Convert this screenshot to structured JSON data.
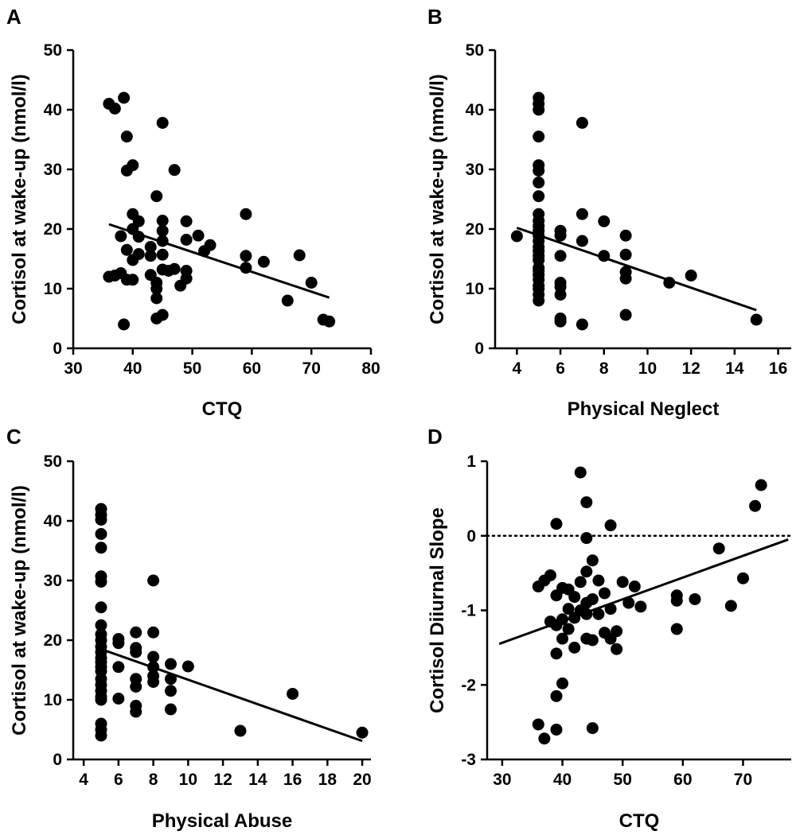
{
  "chart_data": [
    {
      "panel": "A",
      "type": "scatter",
      "xlabel": "CTQ",
      "ylabel": "Cortisol at wake-up (nmol/l)",
      "xlim": [
        30,
        80
      ],
      "ylim": [
        0,
        50
      ],
      "xticks": [
        "30",
        "40",
        "50",
        "60",
        "70",
        "80"
      ],
      "yticks": [
        "0",
        "10",
        "20",
        "30",
        "40",
        "50"
      ],
      "points": [
        [
          36,
          41
        ],
        [
          37,
          40.2
        ],
        [
          38.5,
          42
        ],
        [
          39,
          35.5
        ],
        [
          39,
          29.8
        ],
        [
          40,
          30.7
        ],
        [
          45,
          37.8
        ],
        [
          47,
          29.9
        ],
        [
          44,
          25.5
        ],
        [
          40,
          22.5
        ],
        [
          41,
          21.3
        ],
        [
          45,
          21.4
        ],
        [
          49,
          21.3
        ],
        [
          59,
          22.5
        ],
        [
          40,
          20
        ],
        [
          45,
          19.7
        ],
        [
          51,
          18.9
        ],
        [
          41,
          18.7
        ],
        [
          38,
          18.8
        ],
        [
          45,
          18
        ],
        [
          49,
          18.2
        ],
        [
          53,
          17.3
        ],
        [
          39,
          16.5
        ],
        [
          43,
          17
        ],
        [
          52,
          16.3
        ],
        [
          41,
          15.8
        ],
        [
          43,
          15.5
        ],
        [
          45,
          15.7
        ],
        [
          40,
          14.8
        ],
        [
          59,
          15.5
        ],
        [
          62,
          14.5
        ],
        [
          68,
          15.6
        ],
        [
          59,
          13.5
        ],
        [
          49,
          13
        ],
        [
          46,
          13
        ],
        [
          47,
          13.3
        ],
        [
          45,
          13.2
        ],
        [
          36,
          12
        ],
        [
          37,
          12.2
        ],
        [
          38,
          12.6
        ],
        [
          40,
          11.5
        ],
        [
          39,
          11.5
        ],
        [
          43,
          12.3
        ],
        [
          44,
          11
        ],
        [
          49,
          11.7
        ],
        [
          48,
          10.5
        ],
        [
          44,
          10
        ],
        [
          44,
          8.4
        ],
        [
          70,
          11
        ],
        [
          66,
          8
        ],
        [
          38.5,
          4
        ],
        [
          44,
          5
        ],
        [
          45,
          5.6
        ],
        [
          72,
          4.8
        ],
        [
          73,
          4.5
        ]
      ],
      "regression": {
        "x": [
          36,
          73
        ],
        "y": [
          20.8,
          8.5
        ]
      }
    },
    {
      "panel": "B",
      "type": "scatter",
      "xlabel": "Physical Neglect",
      "ylabel": "Cortisol at wake-up (nmol/l)",
      "xlim": [
        3,
        16.6
      ],
      "ylim": [
        0,
        50
      ],
      "xticks": [
        "4",
        "6",
        "8",
        "10",
        "12",
        "14",
        "16"
      ],
      "yticks": [
        "0",
        "10",
        "20",
        "30",
        "40",
        "50"
      ],
      "points": [
        [
          5,
          42
        ],
        [
          5,
          41
        ],
        [
          5,
          40
        ],
        [
          5,
          35.5
        ],
        [
          5,
          30.7
        ],
        [
          5,
          29.8
        ],
        [
          5,
          27.8
        ],
        [
          5,
          25.5
        ],
        [
          5,
          22.5
        ],
        [
          5,
          21.4
        ],
        [
          5,
          20.5
        ],
        [
          5,
          19.7
        ],
        [
          5,
          18.9
        ],
        [
          5,
          18
        ],
        [
          5,
          17
        ],
        [
          5,
          16.3
        ],
        [
          5,
          15.5
        ],
        [
          5,
          14.8
        ],
        [
          5,
          13.5
        ],
        [
          5,
          13
        ],
        [
          5,
          12.3
        ],
        [
          5,
          11.5
        ],
        [
          5,
          10.5
        ],
        [
          5,
          10
        ],
        [
          5,
          9
        ],
        [
          5,
          8
        ],
        [
          4,
          18.8
        ],
        [
          6,
          19.7
        ],
        [
          6,
          18.9
        ],
        [
          6,
          15.5
        ],
        [
          6,
          11
        ],
        [
          6,
          10.3
        ],
        [
          6,
          9
        ],
        [
          6,
          5
        ],
        [
          6,
          4.5
        ],
        [
          7,
          37.8
        ],
        [
          7,
          22.5
        ],
        [
          7,
          18
        ],
        [
          7,
          4
        ],
        [
          8,
          21.3
        ],
        [
          8,
          15.5
        ],
        [
          9,
          18.9
        ],
        [
          9,
          15.7
        ],
        [
          9,
          12.8
        ],
        [
          9,
          11.7
        ],
        [
          9,
          5.6
        ],
        [
          11,
          11
        ],
        [
          12,
          12.2
        ],
        [
          15,
          4.8
        ]
      ],
      "regression": {
        "x": [
          4,
          15
        ],
        "y": [
          20.2,
          6.4
        ]
      }
    },
    {
      "panel": "C",
      "type": "scatter",
      "xlabel": "Physical Abuse",
      "ylabel": "Cortisol at wake-up (nmol/l)",
      "xlim": [
        3.4,
        20.5
      ],
      "ylim": [
        0,
        50
      ],
      "xticks": [
        "4",
        "6",
        "8",
        "10",
        "12",
        "14",
        "16",
        "18",
        "20"
      ],
      "yticks": [
        "0",
        "10",
        "20",
        "30",
        "40",
        "50"
      ],
      "points": [
        [
          5,
          42
        ],
        [
          5,
          41
        ],
        [
          5,
          40.2
        ],
        [
          5,
          37.8
        ],
        [
          5,
          35.5
        ],
        [
          5,
          30.7
        ],
        [
          5,
          29.8
        ],
        [
          5,
          25.5
        ],
        [
          5,
          22.5
        ],
        [
          5,
          21
        ],
        [
          5,
          20
        ],
        [
          5,
          18.9
        ],
        [
          5,
          18
        ],
        [
          5,
          17
        ],
        [
          5,
          16.3
        ],
        [
          5,
          15.5
        ],
        [
          5,
          14.8
        ],
        [
          5,
          13.5
        ],
        [
          5,
          12.5
        ],
        [
          5,
          11.5
        ],
        [
          5,
          10.5
        ],
        [
          5,
          10
        ],
        [
          5,
          6
        ],
        [
          5,
          5
        ],
        [
          5,
          4
        ],
        [
          6,
          20.2
        ],
        [
          6,
          19.5
        ],
        [
          6,
          15.5
        ],
        [
          6,
          10.2
        ],
        [
          7,
          21.3
        ],
        [
          7,
          18.7
        ],
        [
          7,
          18
        ],
        [
          7,
          13.5
        ],
        [
          7,
          12.2
        ],
        [
          7,
          9
        ],
        [
          7,
          8
        ],
        [
          8,
          30
        ],
        [
          8,
          21.3
        ],
        [
          8,
          17.2
        ],
        [
          8,
          15.5
        ],
        [
          8,
          14
        ],
        [
          8,
          13
        ],
        [
          9,
          16
        ],
        [
          9,
          13.5
        ],
        [
          9,
          11.5
        ],
        [
          9,
          8.4
        ],
        [
          10,
          15.6
        ],
        [
          13,
          4.8
        ],
        [
          16,
          11
        ],
        [
          20,
          4.5
        ]
      ],
      "regression": {
        "x": [
          5,
          20
        ],
        "y": [
          18.5,
          3.1
        ]
      }
    },
    {
      "panel": "D",
      "type": "scatter",
      "xlabel": "CTQ",
      "ylabel": "Cortisol Diiurnal Slope",
      "xlim": [
        27.5,
        78
      ],
      "ylim": [
        -3,
        1
      ],
      "xticks": [
        "30",
        "40",
        "50",
        "60",
        "70"
      ],
      "yticks": [
        "-3",
        "-2",
        "-1",
        "0",
        "1"
      ],
      "reference_line": 0,
      "points": [
        [
          43,
          0.85
        ],
        [
          44,
          0.45
        ],
        [
          73,
          0.68
        ],
        [
          72,
          0.4
        ],
        [
          39,
          0.16
        ],
        [
          48,
          0.14
        ],
        [
          44,
          -0.03
        ],
        [
          66,
          -0.17
        ],
        [
          45,
          -0.33
        ],
        [
          44,
          -0.48
        ],
        [
          70,
          -0.57
        ],
        [
          38,
          -0.53
        ],
        [
          37,
          -0.6
        ],
        [
          36,
          -0.68
        ],
        [
          41,
          -0.72
        ],
        [
          50,
          -0.62
        ],
        [
          52,
          -0.68
        ],
        [
          43,
          -0.62
        ],
        [
          46,
          -0.6
        ],
        [
          59,
          -0.8
        ],
        [
          47,
          -0.77
        ],
        [
          40,
          -0.7
        ],
        [
          39,
          -0.8
        ],
        [
          62,
          -0.85
        ],
        [
          59,
          -0.87
        ],
        [
          45,
          -0.85
        ],
        [
          42,
          -0.82
        ],
        [
          44,
          -0.9
        ],
        [
          51,
          -0.9
        ],
        [
          53,
          -0.95
        ],
        [
          68,
          -0.94
        ],
        [
          41,
          -0.98
        ],
        [
          43,
          -1.0
        ],
        [
          48,
          -0.98
        ],
        [
          38,
          -1.15
        ],
        [
          40,
          -1.12
        ],
        [
          42,
          -1.1
        ],
        [
          44,
          -1.05
        ],
        [
          46,
          -1.05
        ],
        [
          39,
          -1.2
        ],
        [
          41,
          -1.25
        ],
        [
          47,
          -1.3
        ],
        [
          49,
          -1.28
        ],
        [
          59,
          -1.25
        ],
        [
          40,
          -1.38
        ],
        [
          44,
          -1.38
        ],
        [
          45,
          -1.4
        ],
        [
          48,
          -1.38
        ],
        [
          49,
          -1.52
        ],
        [
          42,
          -1.5
        ],
        [
          39,
          -1.58
        ],
        [
          40,
          -1.98
        ],
        [
          39,
          -2.15
        ],
        [
          36,
          -2.53
        ],
        [
          45,
          -2.58
        ],
        [
          39,
          -2.6
        ],
        [
          37,
          -2.72
        ]
      ],
      "regression": {
        "x": [
          29.5,
          77.5
        ],
        "y": [
          -1.45,
          -0.05
        ]
      }
    }
  ],
  "panels": [
    {
      "letter": "A"
    },
    {
      "letter": "B"
    },
    {
      "letter": "C"
    },
    {
      "letter": "D"
    }
  ]
}
